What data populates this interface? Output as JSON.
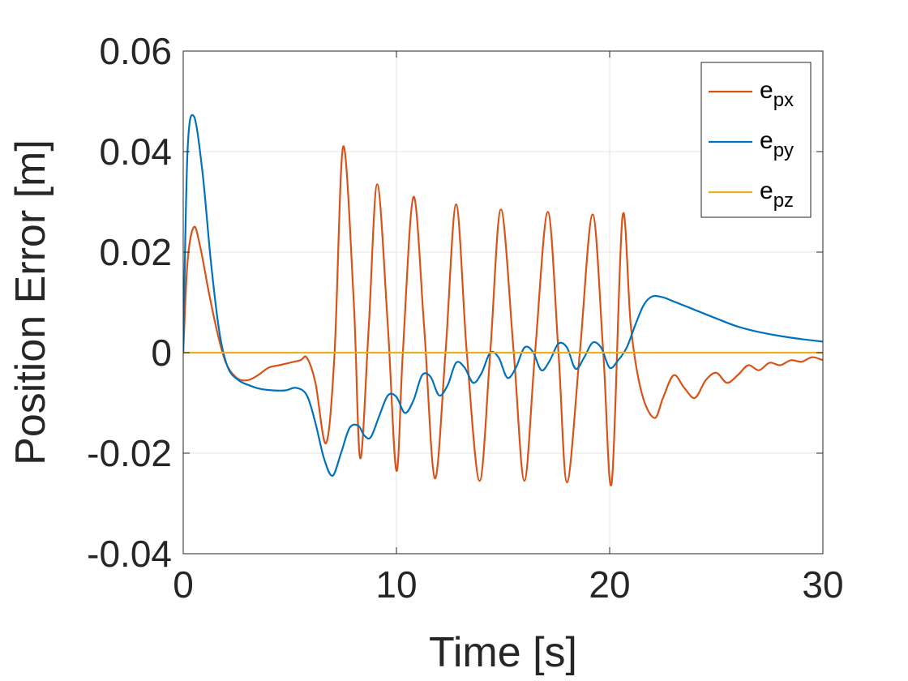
{
  "chart_data": {
    "type": "line",
    "title": "",
    "xlabel": "Time [s]",
    "ylabel": "Position Error [m]",
    "xlim": [
      0,
      30
    ],
    "ylim": [
      -0.04,
      0.06
    ],
    "xticks": [
      0,
      10,
      20,
      30
    ],
    "xtick_labels": [
      "0",
      "10",
      "20",
      "30"
    ],
    "yticks": [
      -0.04,
      -0.02,
      0,
      0.02,
      0.04,
      0.06
    ],
    "ytick_labels": [
      "-0.04",
      "-0.02",
      "0",
      "0.02",
      "0.04",
      "0.06"
    ],
    "grid": true,
    "legend_position": "top-right",
    "series": [
      {
        "name": "e_px",
        "legend_main": "e",
        "legend_sub": "px",
        "color": "#D95319",
        "x": [
          0,
          0.2,
          0.5,
          0.8,
          1.2,
          1.6,
          2.0,
          2.5,
          3.0,
          3.5,
          4.0,
          4.5,
          5.0,
          5.5,
          5.8,
          6.2,
          6.7,
          7.1,
          7.5,
          8.0,
          8.3,
          8.7,
          9.1,
          9.6,
          10.0,
          10.3,
          10.8,
          11.3,
          11.8,
          12.3,
          12.8,
          13.3,
          13.9,
          14.4,
          14.9,
          15.5,
          16.0,
          16.5,
          17.1,
          17.6,
          18.0,
          18.6,
          19.2,
          19.7,
          20.1,
          20.6,
          21.0,
          21.5,
          22.1,
          22.5,
          23.0,
          23.5,
          24.0,
          24.5,
          25.0,
          25.5,
          26.0,
          26.5,
          27.0,
          27.5,
          28.0,
          28.5,
          29.0,
          29.5,
          30.0
        ],
        "y": [
          0,
          0.018,
          0.025,
          0.021,
          0.012,
          0.004,
          -0.002,
          -0.005,
          -0.0055,
          -0.0045,
          -0.003,
          -0.0025,
          -0.002,
          -0.0015,
          -0.001,
          -0.006,
          -0.018,
          0.0,
          0.041,
          0.01,
          -0.021,
          0.005,
          0.0335,
          0.005,
          -0.0235,
          0.0,
          0.031,
          0.005,
          -0.025,
          0.0,
          0.0295,
          0.0,
          -0.0255,
          0.0,
          0.0285,
          0.0,
          -0.0255,
          0.0,
          0.028,
          0.0,
          -0.0258,
          0.0,
          0.0275,
          0.0,
          -0.0258,
          0.027,
          0.005,
          -0.008,
          -0.013,
          -0.009,
          -0.0045,
          -0.007,
          -0.009,
          -0.0055,
          -0.004,
          -0.006,
          -0.0045,
          -0.0025,
          -0.0035,
          -0.002,
          -0.0025,
          -0.0015,
          -0.0018,
          -0.0009,
          -0.0015
        ]
      },
      {
        "name": "e_py",
        "legend_main": "e",
        "legend_sub": "py",
        "color": "#0072BD",
        "x": [
          0,
          0.2,
          0.5,
          0.9,
          1.3,
          1.7,
          2.1,
          2.6,
          3.1,
          3.6,
          4.2,
          4.8,
          5.3,
          5.8,
          6.2,
          6.6,
          7.0,
          7.4,
          7.8,
          8.2,
          8.5,
          8.8,
          9.2,
          9.6,
          10.0,
          10.4,
          10.8,
          11.2,
          11.6,
          12.0,
          12.4,
          12.8,
          13.2,
          13.6,
          14.0,
          14.4,
          14.8,
          15.2,
          15.6,
          16.0,
          16.4,
          16.8,
          17.2,
          17.6,
          18.0,
          18.4,
          18.8,
          19.2,
          19.6,
          20.0,
          20.4,
          20.8,
          21.2,
          21.6,
          22.0,
          22.5,
          23.0,
          24.0,
          25.0,
          26.0,
          27.0,
          28.0,
          29.0,
          30.0
        ],
        "y": [
          0,
          0.04,
          0.047,
          0.036,
          0.018,
          0.004,
          -0.003,
          -0.0055,
          -0.0065,
          -0.0072,
          -0.0075,
          -0.0075,
          -0.007,
          -0.0085,
          -0.014,
          -0.021,
          -0.0245,
          -0.02,
          -0.015,
          -0.0145,
          -0.0165,
          -0.0168,
          -0.0125,
          -0.0085,
          -0.0088,
          -0.012,
          -0.0095,
          -0.0045,
          -0.0048,
          -0.0085,
          -0.0065,
          -0.002,
          -0.003,
          -0.006,
          -0.004,
          0.0,
          -0.001,
          -0.005,
          -0.003,
          0.001,
          0.0002,
          -0.0035,
          -0.0015,
          0.0018,
          0.001,
          -0.0032,
          -0.001,
          0.002,
          0.001,
          -0.003,
          -0.0015,
          0.001,
          0.0055,
          0.0095,
          0.0112,
          0.011,
          0.0102,
          0.0085,
          0.0068,
          0.0052,
          0.0041,
          0.0033,
          0.0027,
          0.0022
        ]
      },
      {
        "name": "e_pz",
        "legend_main": "e",
        "legend_sub": "pz",
        "color": "#EDB120",
        "x": [
          0,
          30
        ],
        "y": [
          0,
          0
        ]
      }
    ]
  }
}
